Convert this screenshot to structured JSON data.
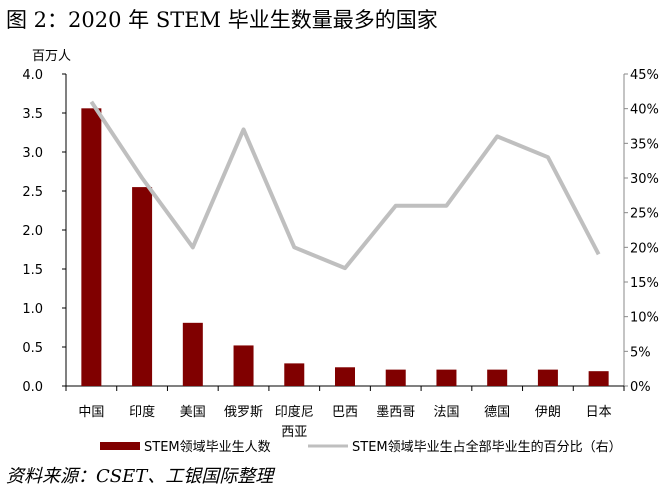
{
  "title": "图 2：2020 年 STEM 毕业生数量最多的国家",
  "source": "资料来源：CSET、工银国际整理",
  "chart_data": {
    "type": "bar+line",
    "y_left_unit": "百万人",
    "categories": [
      "中国",
      "印度",
      "美国",
      "俄罗斯",
      "印度尼西亚",
      "巴西",
      "墨西哥",
      "法国",
      "德国",
      "伊朗",
      "日本"
    ],
    "category_lines": [
      [
        "中国"
      ],
      [
        "印度"
      ],
      [
        "美国"
      ],
      [
        "俄罗斯"
      ],
      [
        "印度尼",
        "西亚"
      ],
      [
        "巴西"
      ],
      [
        "墨西哥"
      ],
      [
        "法国"
      ],
      [
        "德国"
      ],
      [
        "伊朗"
      ],
      [
        "日本"
      ]
    ],
    "series": [
      {
        "name": "STEM领域毕业生人数",
        "type": "bar",
        "axis": "left",
        "color": "#800000",
        "values": [
          3.56,
          2.55,
          0.81,
          0.52,
          0.29,
          0.24,
          0.21,
          0.21,
          0.21,
          0.21,
          0.19
        ]
      },
      {
        "name": "STEM领域毕业生占全部毕业生的百分比（右）",
        "type": "line",
        "axis": "right",
        "color": "#bfbfbf",
        "values": [
          41,
          30,
          20,
          37,
          20,
          17,
          26,
          26,
          36,
          33,
          19
        ]
      }
    ],
    "ylim_left": [
      0,
      4.0
    ],
    "yticks_left": [
      "0.0",
      "0.5",
      "1.0",
      "1.5",
      "2.0",
      "2.5",
      "3.0",
      "3.5",
      "4.0"
    ],
    "ylim_right": [
      0,
      45
    ],
    "yticks_right": [
      "0%",
      "5%",
      "10%",
      "15%",
      "20%",
      "25%",
      "30%",
      "35%",
      "40%",
      "45%"
    ],
    "legend": "bottom",
    "grid": false
  }
}
